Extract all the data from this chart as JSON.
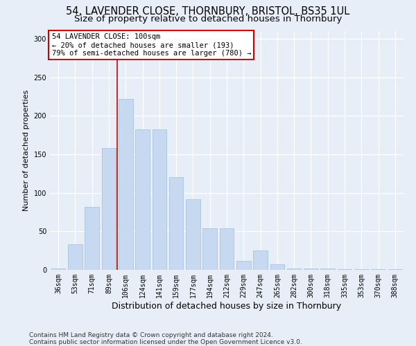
{
  "title": "54, LAVENDER CLOSE, THORNBURY, BRISTOL, BS35 1UL",
  "subtitle": "Size of property relative to detached houses in Thornbury",
  "xlabel": "Distribution of detached houses by size in Thornbury",
  "ylabel": "Number of detached properties",
  "categories": [
    "36sqm",
    "53sqm",
    "71sqm",
    "89sqm",
    "106sqm",
    "124sqm",
    "141sqm",
    "159sqm",
    "177sqm",
    "194sqm",
    "212sqm",
    "229sqm",
    "247sqm",
    "265sqm",
    "282sqm",
    "300sqm",
    "318sqm",
    "335sqm",
    "353sqm",
    "370sqm",
    "388sqm"
  ],
  "values": [
    2,
    33,
    82,
    158,
    222,
    182,
    182,
    120,
    92,
    54,
    54,
    12,
    25,
    7,
    2,
    2,
    2,
    1,
    1,
    1,
    1
  ],
  "bar_color": "#c7d9f0",
  "bar_edge_color": "#a8c4e0",
  "vline_color": "#cc0000",
  "vline_x": 3.5,
  "annotation_line1": "54 LAVENDER CLOSE: 100sqm",
  "annotation_line2": "← 20% of detached houses are smaller (193)",
  "annotation_line3": "79% of semi-detached houses are larger (780) →",
  "annotation_box_bg": "#ffffff",
  "annotation_box_edge": "#cc0000",
  "ylim": [
    0,
    310
  ],
  "yticks": [
    0,
    50,
    100,
    150,
    200,
    250,
    300
  ],
  "background_color": "#e8eef8",
  "grid_color": "#ffffff",
  "footer_line1": "Contains HM Land Registry data © Crown copyright and database right 2024.",
  "footer_line2": "Contains public sector information licensed under the Open Government Licence v3.0.",
  "title_fontsize": 10.5,
  "subtitle_fontsize": 9.5,
  "xlabel_fontsize": 9,
  "ylabel_fontsize": 8,
  "tick_fontsize": 7,
  "annotation_fontsize": 7.5,
  "footer_fontsize": 6.5
}
